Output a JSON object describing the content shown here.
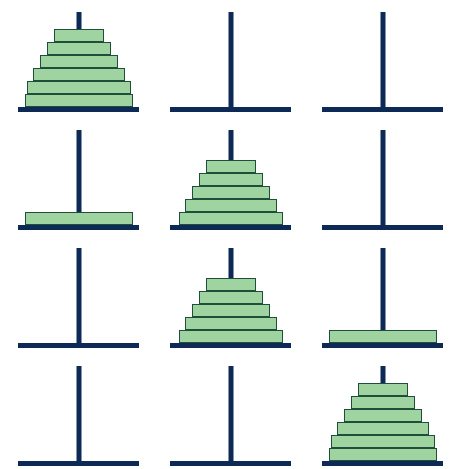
{
  "colors": {
    "background": "#ffffff",
    "peg": "#0d2a57",
    "disk_fill": "#9fd3a0",
    "disk_border": "#1f4f3a"
  },
  "grid": {
    "rows": 4,
    "cols": 3
  },
  "states": [
    {
      "pegs": [
        [
          6,
          5,
          4,
          3,
          2,
          1
        ],
        [],
        []
      ]
    },
    {
      "pegs": [
        [
          6
        ],
        [
          5,
          4,
          3,
          2,
          1
        ],
        []
      ]
    },
    {
      "pegs": [
        [],
        [
          5,
          4,
          3,
          2,
          1
        ],
        [
          6
        ]
      ]
    },
    {
      "pegs": [
        [],
        [],
        [
          6,
          5,
          4,
          3,
          2,
          1
        ]
      ]
    }
  ]
}
